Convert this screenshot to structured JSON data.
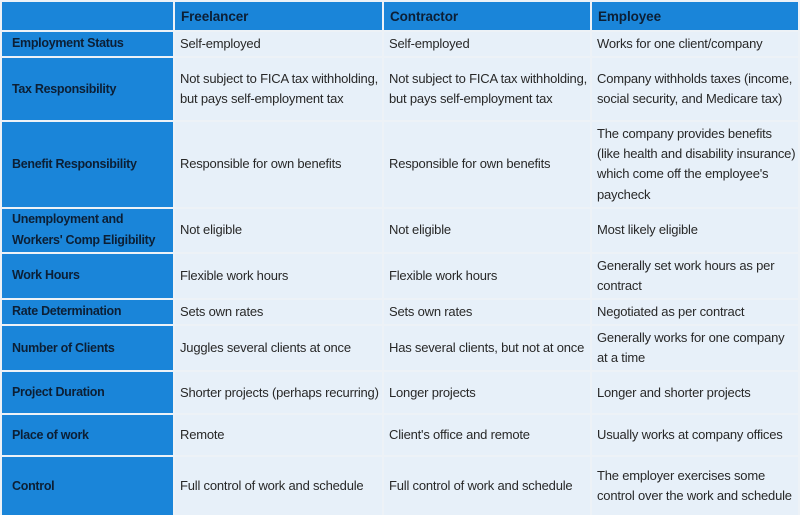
{
  "colors": {
    "header_blue": "#1a85d9",
    "cell_light_blue": "#e7f0f9",
    "header_text": "#0c1f35",
    "body_text": "#282828"
  },
  "table": {
    "columns": [
      "",
      "Freelancer",
      "Contractor",
      "Employee"
    ],
    "rows": [
      {
        "label": "Employment Status",
        "cells": [
          "Self-employed",
          "Self-employed",
          "Works for one client/company"
        ]
      },
      {
        "label": "Tax Responsibility",
        "cells": [
          "Not subject to FICA tax withholding, but pays self-employment tax",
          "Not subject to FICA tax withholding, but pays self-employment tax",
          "Company withholds taxes (income, social security, and Medicare tax)"
        ]
      },
      {
        "label": "Benefit Responsibility",
        "cells": [
          "Responsible for own benefits",
          "Responsible for own benefits",
          "The company provides benefits (like health and disability insurance) which come off the employee's paycheck"
        ]
      },
      {
        "label": "Unemployment and Workers' Comp Eligibility",
        "cells": [
          "Not eligible",
          "Not eligible",
          "Most likely eligible"
        ]
      },
      {
        "label": "Work Hours",
        "cells": [
          "Flexible work hours",
          "Flexible work hours",
          "Generally set work hours as per contract"
        ]
      },
      {
        "label": "Rate Determination",
        "cells": [
          "Sets own rates",
          "Sets own rates",
          "Negotiated as per contract"
        ]
      },
      {
        "label": "Number of Clients",
        "cells": [
          "Juggles several clients at once",
          "Has several clients, but not at once",
          "Generally works for one company at a time"
        ]
      },
      {
        "label": "Project Duration",
        "cells": [
          "Shorter projects (perhaps recurring)",
          "Longer projects",
          "Longer and shorter projects"
        ]
      },
      {
        "label": "Place of work",
        "cells": [
          "Remote",
          "Client's office and remote",
          "Usually works at company offices"
        ]
      },
      {
        "label": "Control",
        "cells": [
          "Full control of work and schedule",
          "Full control of work and schedule",
          "The employer exercises some control over the work and schedule"
        ]
      }
    ]
  }
}
